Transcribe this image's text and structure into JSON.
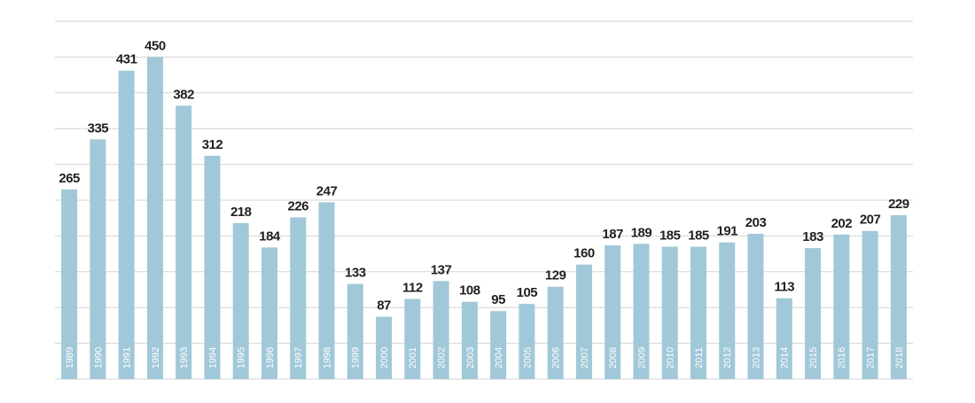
{
  "chart_data": {
    "type": "bar",
    "categories": [
      "1989",
      "1990",
      "1991",
      "1992",
      "1993",
      "1994",
      "1995",
      "1996",
      "1997",
      "1998",
      "1999",
      "2000",
      "2001",
      "2002",
      "2003",
      "2004",
      "2005",
      "2006",
      "2007",
      "2008",
      "2009",
      "2010",
      "2011",
      "2012",
      "2013",
      "2014",
      "2015",
      "2016",
      "2017",
      "2018"
    ],
    "values": [
      265,
      335,
      431,
      450,
      382,
      312,
      218,
      184,
      226,
      247,
      133,
      87,
      112,
      137,
      108,
      95,
      105,
      129,
      160,
      187,
      189,
      185,
      185,
      191,
      203,
      113,
      183,
      202,
      207,
      229
    ],
    "color": "#a0c8d8",
    "ylim": [
      0,
      500
    ],
    "yticks": [
      0,
      50,
      100,
      150,
      200,
      250,
      300,
      350,
      400,
      450,
      500
    ],
    "grid": true
  }
}
